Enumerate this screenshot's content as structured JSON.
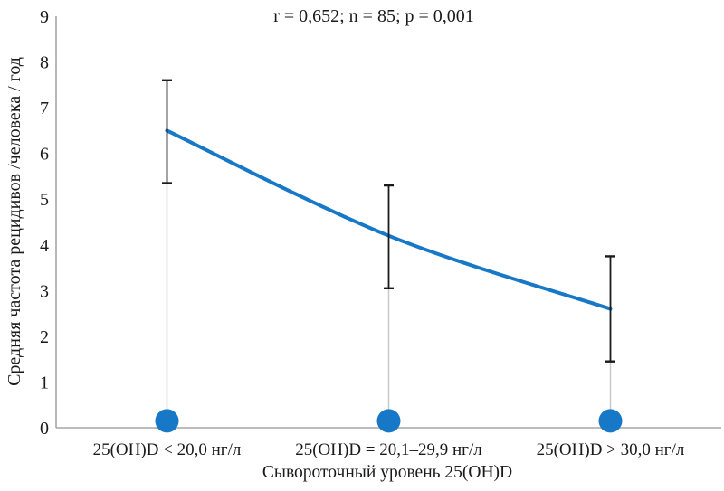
{
  "title": "r = 0,652; n = 85; p = 0,001",
  "chart_data": {
    "type": "line",
    "title": "r = 0,652; n = 85; p = 0,001",
    "xlabel": "Сывороточный уровень 25(OH)D",
    "ylabel": "Средняя частота рецидивов /человека / год",
    "categories": [
      "25(OH)D < 20,0 нг/л",
      "25(OH)D = 20,1–29,9 нг/л",
      "25(OH)D > 30,0 нг/л"
    ],
    "series": [
      {
        "name": "Средняя частота рецидивов",
        "values": [
          6.5,
          4.2,
          2.6
        ]
      }
    ],
    "error_bars": {
      "upper": [
        7.6,
        5.3,
        3.75
      ],
      "lower": [
        5.35,
        3.05,
        1.45
      ]
    },
    "baseline_markers": [
      0.15,
      0.15,
      0.15
    ],
    "ylim": [
      0,
      9
    ],
    "y_ticks": [
      0,
      1,
      2,
      3,
      4,
      5,
      6,
      7,
      8,
      9
    ],
    "grid": false,
    "legend": "none",
    "line_smooth": true,
    "colors": {
      "line": "#1878c8",
      "marker": "#1878c8",
      "error_bar": "#1a1a1a",
      "axis": "#a6a6a6",
      "drop_line": "#c9c9c9",
      "text": "#1a1a1a"
    }
  }
}
